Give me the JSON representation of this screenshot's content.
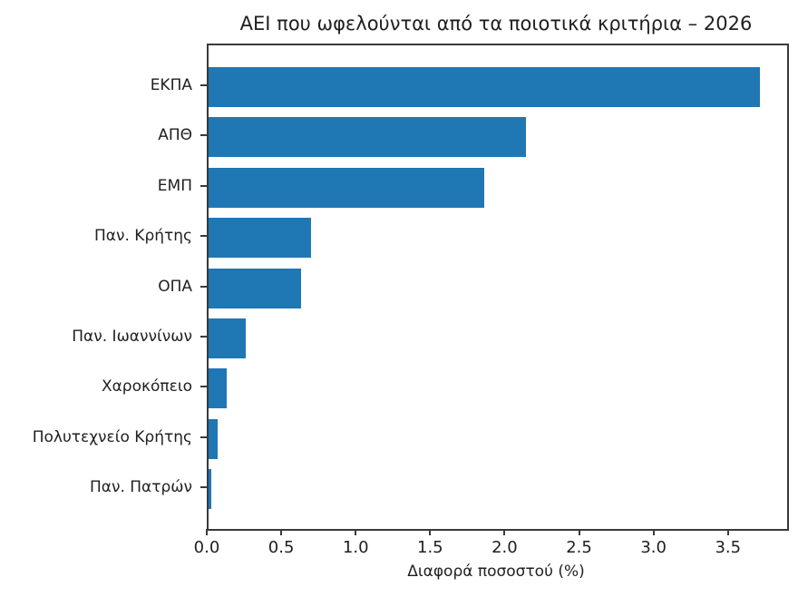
{
  "chart_data": {
    "type": "bar",
    "orientation": "horizontal",
    "title": "ΑΕΙ που ωφελούνται από τα ποιοτικά κριτήρια – 2026",
    "xlabel": "Διαφορά ποσοστού (%)",
    "ylabel": "",
    "categories": [
      "ΕΚΠΑ",
      "ΑΠΘ",
      "ΕΜΠ",
      "Παν. Κρήτης",
      "ΟΠΑ",
      "Παν. Ιωαννίνων",
      "Χαροκόπειο",
      "Πολυτεχνείο Κρήτης",
      "Παν. Πατρών"
    ],
    "values": [
      3.7,
      2.13,
      1.85,
      0.69,
      0.62,
      0.25,
      0.12,
      0.06,
      0.02
    ],
    "xlim": [
      0,
      3.885
    ],
    "xticks": [
      0.0,
      0.5,
      1.0,
      1.5,
      2.0,
      2.5,
      3.0,
      3.5
    ],
    "bar_color": "#1f77b4",
    "grid": false,
    "legend": null
  }
}
